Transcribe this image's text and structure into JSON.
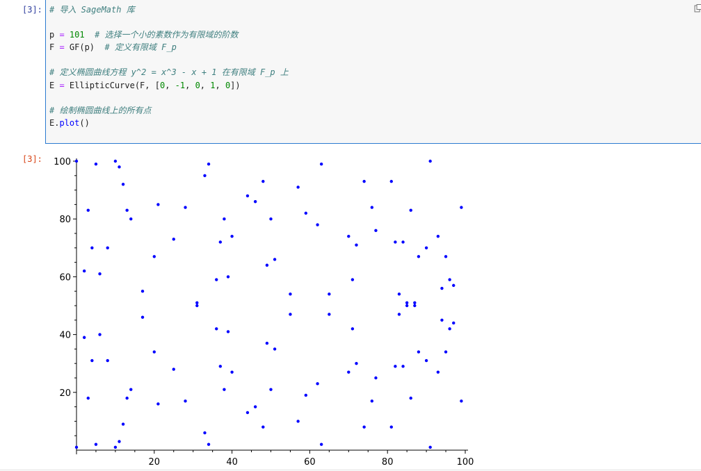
{
  "cell": {
    "input_prompt": "[3]:",
    "output_prompt": "[3]:",
    "code_lines": [
      [
        {
          "t": "# 导入 SageMath 库",
          "c": "comment"
        }
      ],
      [],
      [
        {
          "t": "p "
        },
        {
          "t": "=",
          "c": "op"
        },
        {
          "t": " "
        },
        {
          "t": "101",
          "c": "num"
        },
        {
          "t": "  "
        },
        {
          "t": "# 选择一个小的素数作为有限域的阶数",
          "c": "comment"
        }
      ],
      [
        {
          "t": "F "
        },
        {
          "t": "=",
          "c": "op"
        },
        {
          "t": " GF(p)  "
        },
        {
          "t": "# 定义有限域 F_p",
          "c": "comment"
        }
      ],
      [],
      [
        {
          "t": "# 定义椭圆曲线方程 y^2 = x^3 - x + 1 在有限域 F_p 上",
          "c": "comment"
        }
      ],
      [
        {
          "t": "E "
        },
        {
          "t": "=",
          "c": "op"
        },
        {
          "t": " EllipticCurve(F, ["
        },
        {
          "t": "0",
          "c": "num"
        },
        {
          "t": ", "
        },
        {
          "t": "-1",
          "c": "num"
        },
        {
          "t": ", "
        },
        {
          "t": "0",
          "c": "num"
        },
        {
          "t": ", "
        },
        {
          "t": "1",
          "c": "num"
        },
        {
          "t": ", "
        },
        {
          "t": "0",
          "c": "num"
        },
        {
          "t": "])"
        }
      ],
      [],
      [
        {
          "t": "# 绘制椭圆曲线上的所有点",
          "c": "comment"
        }
      ],
      [
        {
          "t": "E."
        },
        {
          "t": "plot",
          "c": "fn"
        },
        {
          "t": "()"
        }
      ]
    ]
  },
  "colors": {
    "point": "#0000ff",
    "input_border": "#2a7bd1"
  },
  "icons": {
    "copy": "copy-icon"
  },
  "chart_data": {
    "type": "scatter",
    "title": "",
    "xlabel": "",
    "ylabel": "",
    "xlim": [
      0,
      100
    ],
    "ylim": [
      0,
      100
    ],
    "xticks": [
      20,
      40,
      60,
      80,
      100
    ],
    "yticks": [
      20,
      40,
      60,
      80,
      100
    ],
    "grid": false,
    "point_color": "#0000ff",
    "points": [
      [
        0,
        1
      ],
      [
        0,
        100
      ],
      [
        2,
        39
      ],
      [
        2,
        62
      ],
      [
        3,
        18
      ],
      [
        3,
        83
      ],
      [
        4,
        31
      ],
      [
        4,
        70
      ],
      [
        5,
        2
      ],
      [
        5,
        99
      ],
      [
        6,
        40
      ],
      [
        6,
        61
      ],
      [
        8,
        31
      ],
      [
        8,
        70
      ],
      [
        10,
        1
      ],
      [
        10,
        100
      ],
      [
        11,
        3
      ],
      [
        11,
        98
      ],
      [
        12,
        9
      ],
      [
        12,
        92
      ],
      [
        13,
        18
      ],
      [
        13,
        83
      ],
      [
        14,
        21
      ],
      [
        14,
        80
      ],
      [
        17,
        46
      ],
      [
        17,
        55
      ],
      [
        20,
        34
      ],
      [
        20,
        67
      ],
      [
        21,
        16
      ],
      [
        21,
        85
      ],
      [
        25,
        28
      ],
      [
        25,
        73
      ],
      [
        28,
        17
      ],
      [
        28,
        84
      ],
      [
        31,
        50
      ],
      [
        31,
        51
      ],
      [
        33,
        6
      ],
      [
        33,
        95
      ],
      [
        34,
        2
      ],
      [
        34,
        99
      ],
      [
        36,
        42
      ],
      [
        36,
        59
      ],
      [
        37,
        29
      ],
      [
        37,
        72
      ],
      [
        38,
        21
      ],
      [
        38,
        80
      ],
      [
        39,
        41
      ],
      [
        39,
        60
      ],
      [
        40,
        27
      ],
      [
        40,
        74
      ],
      [
        44,
        13
      ],
      [
        44,
        88
      ],
      [
        46,
        15
      ],
      [
        46,
        86
      ],
      [
        48,
        8
      ],
      [
        48,
        93
      ],
      [
        49,
        37
      ],
      [
        49,
        64
      ],
      [
        50,
        21
      ],
      [
        50,
        80
      ],
      [
        51,
        35
      ],
      [
        51,
        66
      ],
      [
        55,
        47
      ],
      [
        55,
        54
      ],
      [
        57,
        10
      ],
      [
        57,
        91
      ],
      [
        59,
        19
      ],
      [
        59,
        82
      ],
      [
        62,
        23
      ],
      [
        62,
        78
      ],
      [
        63,
        2
      ],
      [
        63,
        99
      ],
      [
        65,
        47
      ],
      [
        65,
        54
      ],
      [
        70,
        27
      ],
      [
        70,
        74
      ],
      [
        71,
        42
      ],
      [
        71,
        59
      ],
      [
        72,
        30
      ],
      [
        72,
        71
      ],
      [
        74,
        8
      ],
      [
        74,
        93
      ],
      [
        76,
        17
      ],
      [
        76,
        84
      ],
      [
        77,
        25
      ],
      [
        77,
        76
      ],
      [
        81,
        8
      ],
      [
        81,
        93
      ],
      [
        82,
        29
      ],
      [
        82,
        72
      ],
      [
        83,
        47
      ],
      [
        83,
        54
      ],
      [
        84,
        29
      ],
      [
        84,
        72
      ],
      [
        85,
        50
      ],
      [
        85,
        51
      ],
      [
        86,
        18
      ],
      [
        86,
        83
      ],
      [
        87,
        50
      ],
      [
        87,
        51
      ],
      [
        88,
        34
      ],
      [
        88,
        67
      ],
      [
        90,
        31
      ],
      [
        90,
        70
      ],
      [
        91,
        1
      ],
      [
        91,
        100
      ],
      [
        93,
        27
      ],
      [
        93,
        74
      ],
      [
        94,
        45
      ],
      [
        94,
        56
      ],
      [
        95,
        34
      ],
      [
        95,
        67
      ],
      [
        96,
        42
      ],
      [
        96,
        59
      ],
      [
        97,
        44
      ],
      [
        97,
        57
      ],
      [
        99,
        17
      ],
      [
        99,
        84
      ]
    ]
  }
}
